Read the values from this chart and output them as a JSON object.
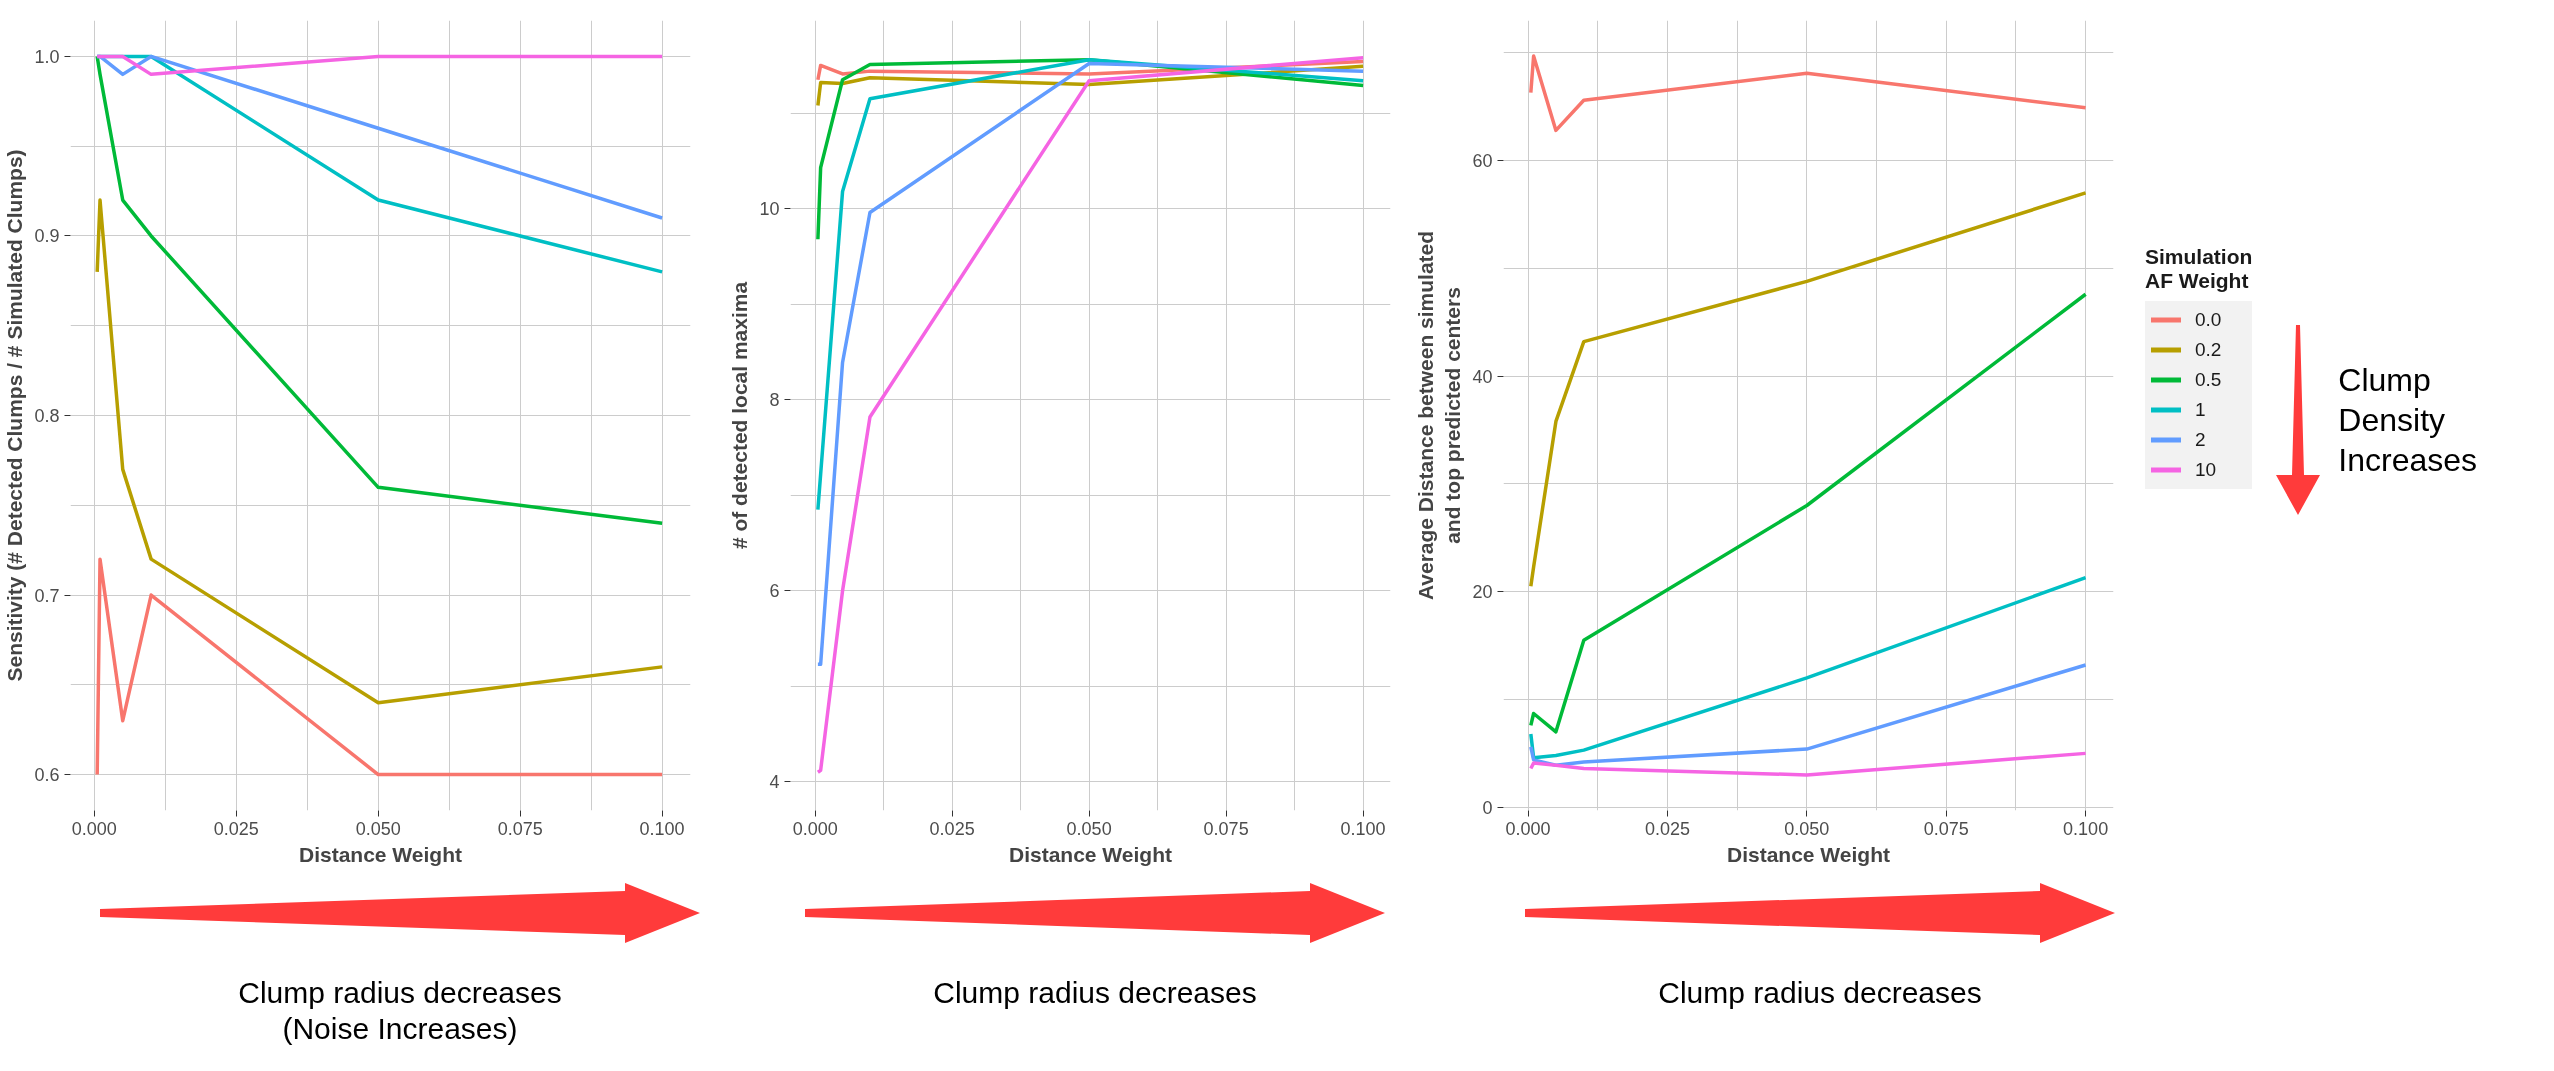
{
  "chart_data": [
    {
      "type": "line",
      "xlabel": "Distance Weight",
      "ylabel": "Sensitivity (# Detected Clumps / # Simulated Clumps)",
      "x": [
        0.0005,
        0.001,
        0.005,
        0.01,
        0.05,
        0.1
      ],
      "xlim": [
        -0.0042,
        0.105
      ],
      "xticks": [
        {
          "value": 0,
          "label": "0.000"
        },
        {
          "value": 0.025,
          "label": "0.025"
        },
        {
          "value": 0.05,
          "label": "0.050"
        },
        {
          "value": 0.075,
          "label": "0.075"
        },
        {
          "value": 0.1,
          "label": "0.100"
        }
      ],
      "ylim": [
        0.58,
        1.02
      ],
      "yticks": [
        {
          "value": 0.6,
          "label": "0.6"
        },
        {
          "value": 0.7,
          "label": "0.7"
        },
        {
          "value": 0.8,
          "label": "0.8"
        },
        {
          "value": 0.9,
          "label": "0.9"
        },
        {
          "value": 1.0,
          "label": "1.0"
        }
      ],
      "grid": true,
      "line_style": "solid",
      "annotations": [
        "Clump radius decreases\n(Noise Increases)"
      ],
      "series": [
        {
          "color": "#f8766d",
          "values": [
            0.6,
            0.72,
            0.63,
            0.7,
            0.6,
            0.6
          ]
        },
        {
          "color": "#b79f00",
          "values": [
            0.88,
            0.92,
            0.77,
            0.72,
            0.64,
            0.66
          ]
        },
        {
          "color": "#00ba38",
          "values": [
            1.0,
            0.99,
            0.92,
            0.9,
            0.76,
            0.74
          ]
        },
        {
          "color": "#00bfc4",
          "values": [
            1.0,
            1.0,
            1.0,
            1.0,
            0.92,
            0.88
          ]
        },
        {
          "color": "#619cff",
          "values": [
            1.0,
            1.0,
            0.99,
            1.0,
            0.96,
            0.91
          ]
        },
        {
          "color": "#f564e3",
          "values": [
            1.0,
            1.0,
            1.0,
            0.99,
            1.0,
            1.0
          ]
        }
      ]
    },
    {
      "type": "line",
      "xlabel": "Distance Weight",
      "ylabel": "# of detected local maxima",
      "x": [
        0.0005,
        0.001,
        0.005,
        0.01,
        0.05,
        0.1
      ],
      "xlim": [
        -0.0045,
        0.105
      ],
      "xticks": [
        {
          "value": 0,
          "label": "0.000"
        },
        {
          "value": 0.025,
          "label": "0.025"
        },
        {
          "value": 0.05,
          "label": "0.050"
        },
        {
          "value": 0.075,
          "label": "0.075"
        },
        {
          "value": 0.1,
          "label": "0.100"
        }
      ],
      "ylim": [
        3.7,
        11.97
      ],
      "yticks": [
        4,
        6,
        8,
        10
      ],
      "grid": true,
      "line_style": "solid",
      "annotations": [
        "Clump radius decreases"
      ],
      "series": [
        {
          "color": "#f8766d",
          "values": [
            11.35,
            11.5,
            11.41,
            11.44,
            11.41,
            11.54
          ]
        },
        {
          "color": "#b79f00",
          "values": [
            11.08,
            11.32,
            11.31,
            11.37,
            11.3,
            11.49
          ]
        },
        {
          "color": "#00ba38",
          "values": [
            9.68,
            10.43,
            11.35,
            11.51,
            11.56,
            11.29
          ]
        },
        {
          "color": "#00bfc4",
          "values": [
            6.85,
            7.22,
            10.18,
            11.15,
            11.56,
            11.34
          ]
        },
        {
          "color": "#619cff",
          "values": [
            5.23,
            5.23,
            8.39,
            9.96,
            11.52,
            11.44
          ]
        },
        {
          "color": "#f564e3",
          "values": [
            4.1,
            4.12,
            6.0,
            7.82,
            11.34,
            11.58
          ]
        }
      ]
    },
    {
      "type": "line",
      "xlabel": "Distance Weight",
      "ylabel": "Average Distance between simulated\nand top predicted centers",
      "x": [
        0.0005,
        0.001,
        0.005,
        0.01,
        0.05,
        0.1
      ],
      "xlim": [
        -0.0044,
        0.105
      ],
      "xticks": [
        {
          "value": 0,
          "label": "0.000"
        },
        {
          "value": 0.025,
          "label": "0.025"
        },
        {
          "value": 0.05,
          "label": "0.050"
        },
        {
          "value": 0.075,
          "label": "0.075"
        },
        {
          "value": 0.1,
          "label": "0.100"
        }
      ],
      "ylim": [
        -0.3,
        73
      ],
      "yticks": [
        0,
        20,
        40,
        60
      ],
      "grid": true,
      "line_style": "solid",
      "legend": "right",
      "legend_title": "Simulation\nAF Weight",
      "annotations": [
        "Clump radius decreases",
        "Clump\nDensity\nIncreases"
      ],
      "series": [
        {
          "name": "0.0",
          "color": "#f8766d",
          "values": [
            66.3,
            69.7,
            62.8,
            65.6,
            68.1,
            64.9
          ]
        },
        {
          "name": "0.2",
          "color": "#b79f00",
          "values": [
            20.5,
            22.3,
            35.8,
            43.2,
            48.8,
            57.0
          ]
        },
        {
          "name": "0.5",
          "color": "#00ba38",
          "values": [
            7.6,
            8.7,
            7.0,
            15.5,
            28.0,
            47.6
          ]
        },
        {
          "name": "1",
          "color": "#00bfc4",
          "values": [
            6.8,
            4.6,
            4.8,
            5.3,
            12.0,
            21.3
          ]
        },
        {
          "name": "2",
          "color": "#619cff",
          "values": [
            5.6,
            4.4,
            3.9,
            4.2,
            5.4,
            13.2
          ]
        },
        {
          "name": "10",
          "color": "#f564e3",
          "values": [
            3.6,
            4.1,
            3.9,
            3.6,
            3.0,
            5.0
          ]
        }
      ]
    }
  ]
}
